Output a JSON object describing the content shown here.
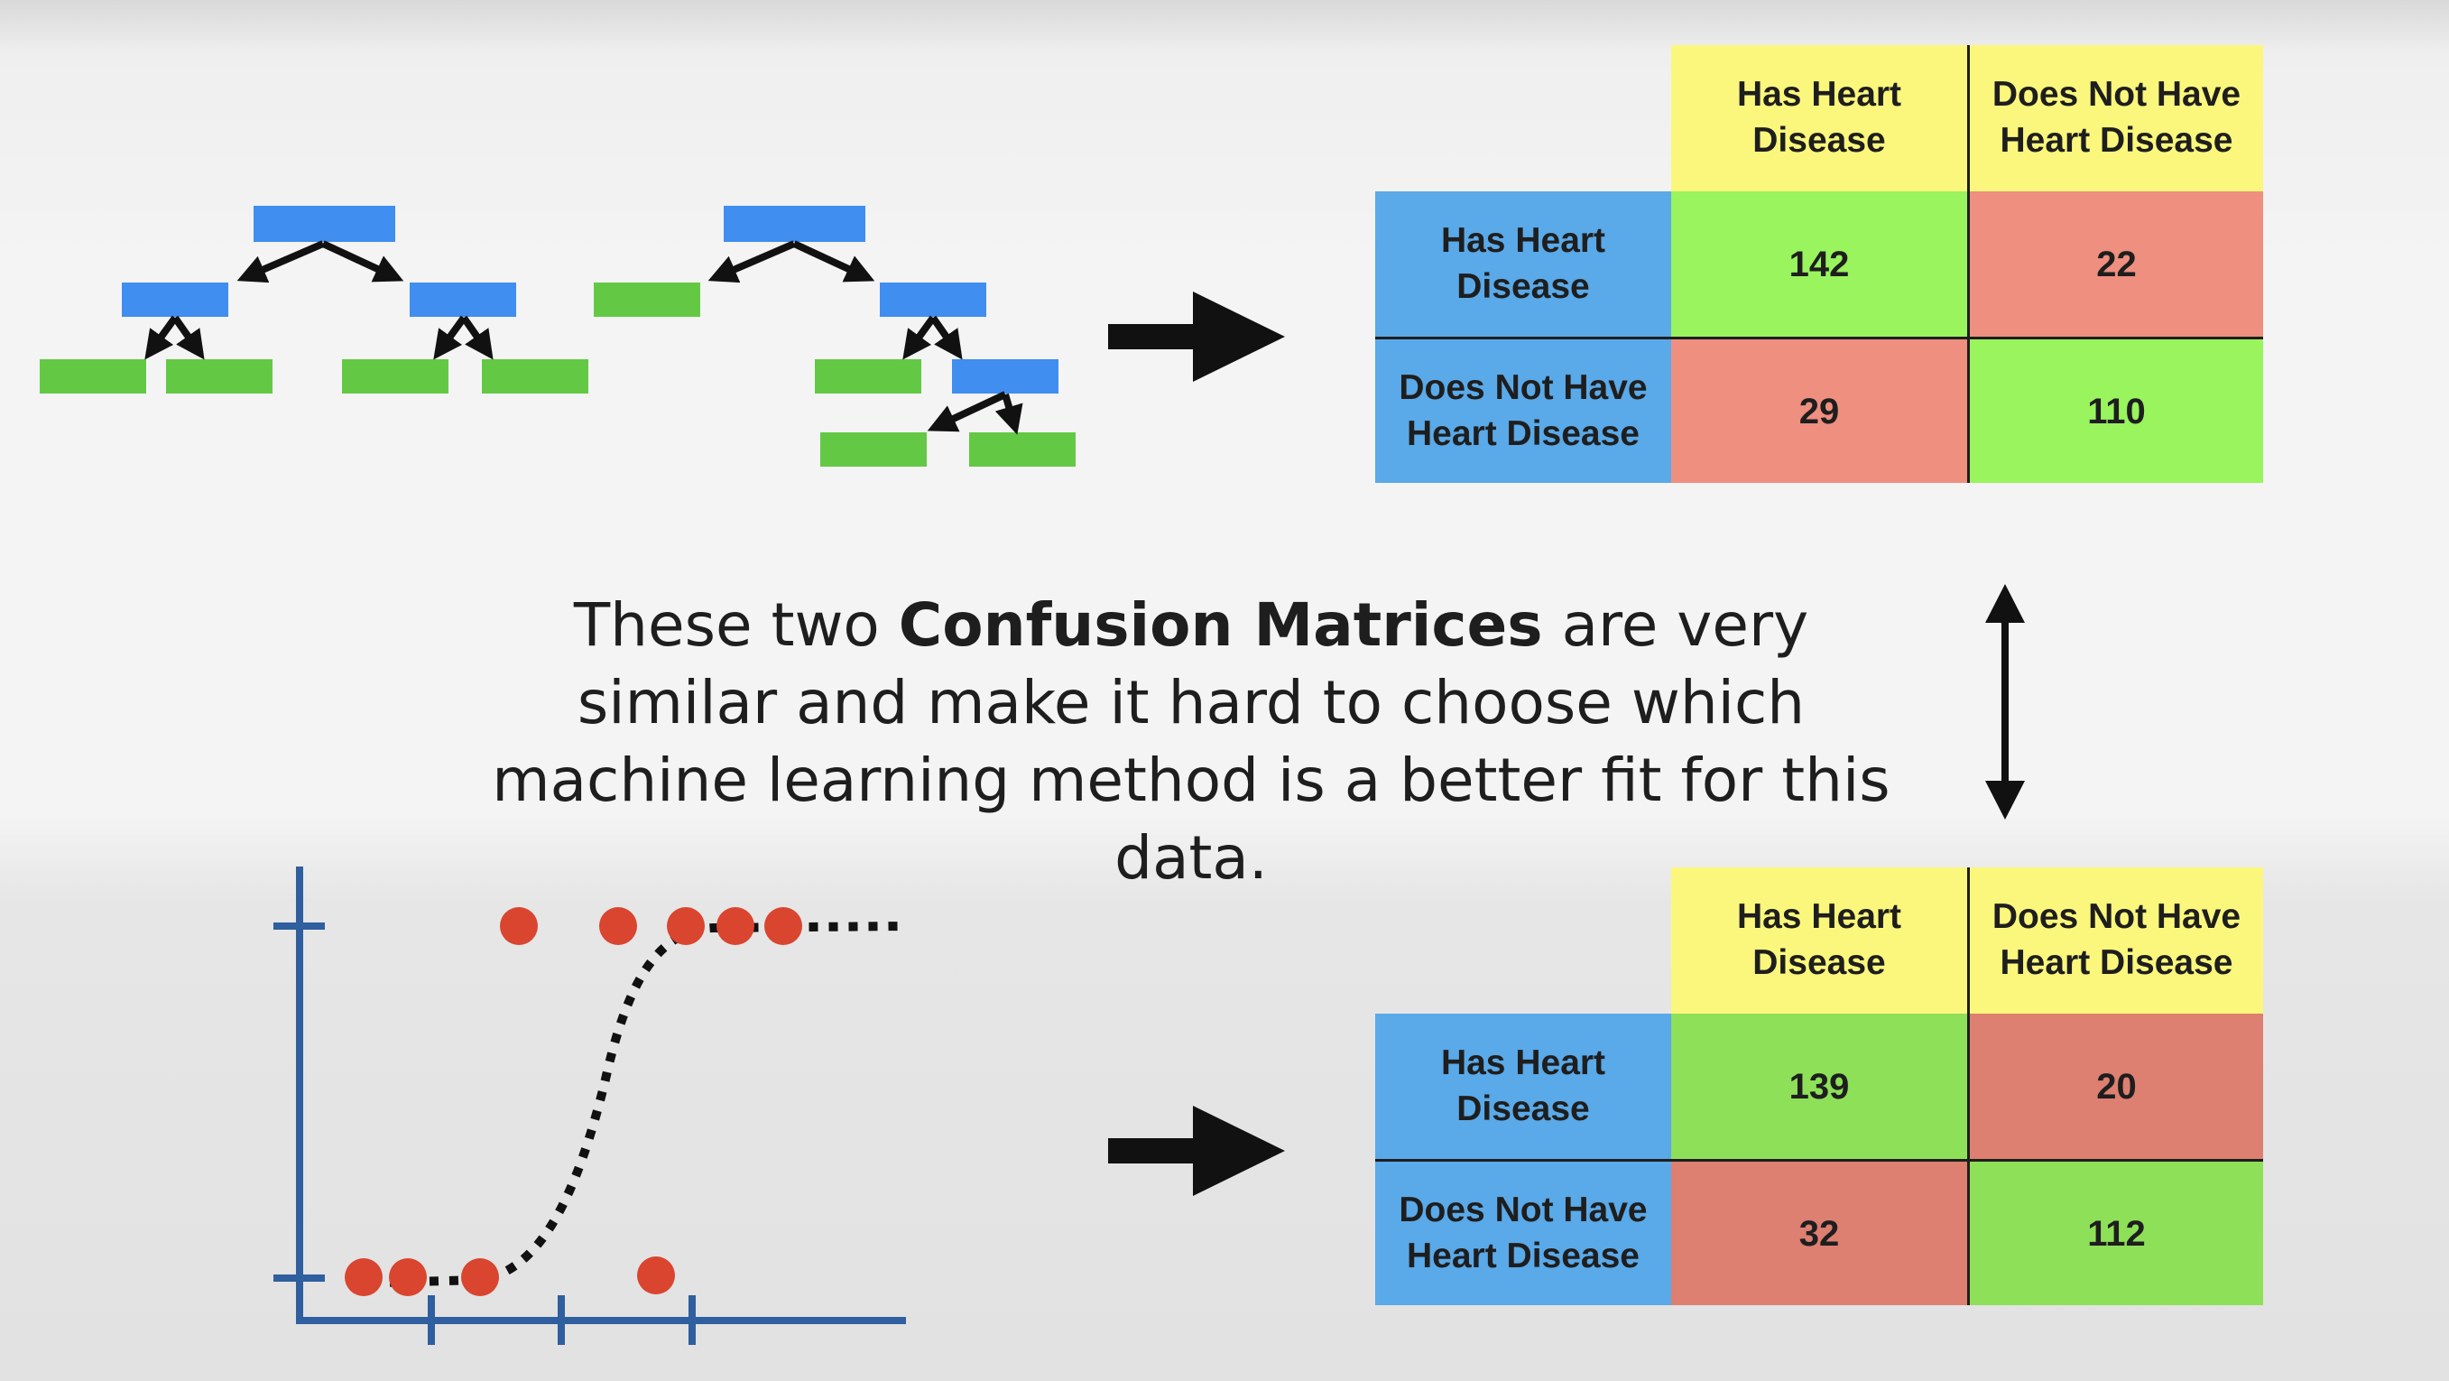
{
  "caption": {
    "before": "These two ",
    "bold": "Confusion Matrices",
    "after": " are very similar and make it hard to choose which machine learning method is a better fit for this data."
  },
  "matrix_top": {
    "col_headers": [
      "Has Heart\nDisease",
      "Does Not Have\nHeart Disease"
    ],
    "row_headers": [
      "Has Heart\nDisease",
      "Does Not Have\nHeart Disease"
    ],
    "values": [
      [
        "142",
        "22"
      ],
      [
        "29",
        "110"
      ]
    ]
  },
  "matrix_bottom": {
    "col_headers": [
      "Has Heart\nDisease",
      "Does Not Have\nHeart Disease"
    ],
    "row_headers": [
      "Has Heart\nDisease",
      "Does Not Have\nHeart Disease"
    ],
    "values": [
      [
        "139",
        "20"
      ],
      [
        "32",
        "112"
      ]
    ]
  },
  "colors": {
    "tree_node_blue": "#3f8ef0",
    "leaf_green": "#63c944",
    "axis_blue": "#2f5f9e",
    "point_red": "#d9452f",
    "header_yellow": "#fbf77c",
    "header_blue": "#5aa9e8",
    "cell_green": "#99f45e",
    "cell_red": "#ee8f7f"
  },
  "icons": [
    "decision-tree-icon",
    "random-forest-icon",
    "logistic-regression-plot-icon",
    "right-arrow-icon",
    "double-vertical-arrow-icon"
  ]
}
